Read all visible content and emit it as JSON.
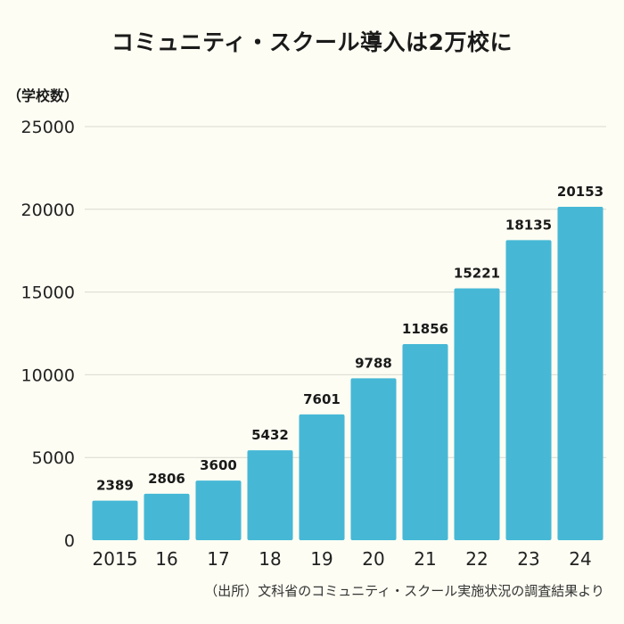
{
  "title": "コミュニティ・スクール導入は2万校に",
  "unit_label": "（学校数）",
  "source": "（出所）文科省のコミュニティ・スクール実施状況の調査結果より",
  "colors": {
    "bar": "#46b8d6",
    "grid": "#d9d9d2",
    "background": "#fdfdf3"
  },
  "chart_data": {
    "type": "bar",
    "title": "コミュニティ・スクール導入は2万校に",
    "ylabel": "（学校数）",
    "xlabel": "",
    "categories": [
      "2015",
      "16",
      "17",
      "18",
      "19",
      "20",
      "21",
      "22",
      "23",
      "24"
    ],
    "values": [
      2389,
      2806,
      3600,
      5432,
      7601,
      9788,
      11856,
      15221,
      18135,
      20153
    ],
    "data_labels": [
      "2389",
      "2806",
      "3600",
      "5432",
      "7601",
      "9788",
      "11856",
      "15221",
      "18135",
      "20153"
    ],
    "yticks": [
      "0",
      "5000",
      "10000",
      "15000",
      "20000",
      "25000"
    ],
    "ylim": [
      0,
      25000
    ],
    "grid": true,
    "legend": "none"
  }
}
